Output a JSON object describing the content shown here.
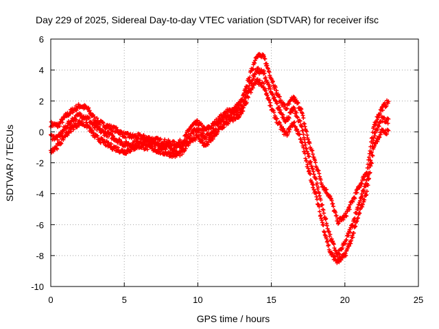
{
  "chart_data": {
    "type": "scatter",
    "title": "Day 229 of 2025, Sidereal Day-to-day VTEC variation (SDTVAR) for receiver ifsc",
    "xlabel": "GPS time / hours",
    "ylabel": "SDTVAR / TECUs",
    "xlim": [
      0,
      25
    ],
    "ylim": [
      -10,
      6
    ],
    "xticks": [
      "0",
      "5",
      "10",
      "15",
      "20",
      "25"
    ],
    "yticks": [
      "-10",
      "-8",
      "-6",
      "-4",
      "-2",
      "0",
      "2",
      "4",
      "6"
    ],
    "grid": true,
    "marker": "plus",
    "color": "#ff0000",
    "series": [
      {
        "x": [
          0.0,
          0.5,
          1.0,
          1.5,
          2.0,
          2.5,
          3.0,
          3.5,
          4.0,
          4.5,
          5.0,
          5.5,
          6.0,
          6.5,
          7.0,
          7.5,
          8.0,
          8.5,
          9.0,
          9.5,
          10.0,
          10.5,
          11.0,
          11.5,
          12.0,
          12.5,
          13.0,
          13.5,
          14.0,
          14.5,
          15.0,
          15.5,
          16.0,
          16.5,
          17.0,
          17.5,
          18.0,
          18.5,
          19.0,
          19.5,
          20.0,
          20.5,
          21.0,
          21.5,
          22.0,
          22.5,
          23.0
        ],
        "y": [
          0.5,
          0.4,
          1.0,
          1.4,
          1.7,
          1.5,
          0.8,
          0.5,
          0.3,
          0.1,
          -0.2,
          -0.3,
          -0.3,
          -0.4,
          -0.5,
          -0.6,
          -0.7,
          -0.8,
          -0.6,
          0.3,
          0.6,
          0.1,
          0.4,
          0.9,
          1.3,
          1.5,
          2.0,
          3.5,
          5.0,
          4.8,
          3.5,
          2.2,
          1.5,
          2.2,
          1.5,
          -0.5,
          -2.0,
          -3.5,
          -4.2,
          -5.8,
          -5.5,
          -4.5,
          -3.5,
          -2.5,
          0.5,
          1.5,
          2.0
        ]
      },
      {
        "x": [
          0.0,
          0.5,
          1.0,
          1.5,
          2.0,
          2.5,
          3.0,
          3.5,
          4.0,
          4.5,
          5.0,
          5.5,
          6.0,
          6.5,
          7.0,
          7.5,
          8.0,
          8.5,
          9.0,
          9.5,
          10.0,
          10.5,
          11.0,
          11.5,
          12.0,
          12.5,
          13.0,
          13.5,
          14.0,
          14.5,
          15.0,
          15.5,
          16.0,
          16.5,
          17.0,
          17.5,
          18.0,
          18.5,
          19.0,
          19.5,
          20.0,
          20.5,
          21.0,
          21.5,
          22.0,
          22.5,
          23.0
        ],
        "y": [
          -0.3,
          -0.4,
          0.3,
          0.8,
          1.1,
          0.9,
          0.3,
          0.0,
          -0.2,
          -0.5,
          -0.8,
          -0.8,
          -0.6,
          -0.7,
          -0.8,
          -0.9,
          -1.0,
          -1.1,
          -0.9,
          -0.1,
          0.2,
          -0.4,
          0.0,
          0.6,
          1.0,
          1.2,
          1.6,
          3.0,
          4.0,
          3.8,
          2.5,
          1.5,
          0.7,
          1.5,
          0.5,
          -1.5,
          -3.0,
          -5.0,
          -6.8,
          -8.0,
          -7.2,
          -6.0,
          -4.5,
          -3.2,
          -0.2,
          0.8,
          0.7
        ]
      },
      {
        "x": [
          0.0,
          0.5,
          1.0,
          1.5,
          2.0,
          2.5,
          3.0,
          3.5,
          4.0,
          4.5,
          5.0,
          5.5,
          6.0,
          6.5,
          7.0,
          7.5,
          8.0,
          8.5,
          9.0,
          9.5,
          10.0,
          10.5,
          11.0,
          11.5,
          12.0,
          12.5,
          13.0,
          13.5,
          14.0,
          14.5,
          15.0,
          15.5,
          16.0,
          16.5,
          17.0,
          17.5,
          18.0,
          18.5,
          19.0,
          19.5,
          20.0,
          20.5,
          21.0,
          21.5,
          22.0,
          22.5,
          23.0
        ],
        "y": [
          -1.2,
          -0.9,
          -0.2,
          0.3,
          0.6,
          0.4,
          -0.3,
          -0.6,
          -0.9,
          -1.1,
          -1.3,
          -1.1,
          -0.9,
          -1.0,
          -1.1,
          -1.3,
          -1.4,
          -1.5,
          -1.3,
          -0.5,
          -0.3,
          -0.9,
          -0.4,
          0.2,
          0.6,
          0.9,
          1.2,
          2.5,
          3.3,
          3.0,
          1.5,
          0.5,
          -0.2,
          0.6,
          -0.4,
          -2.4,
          -4.0,
          -6.0,
          -7.8,
          -8.4,
          -8.0,
          -6.8,
          -5.2,
          -3.8,
          -0.8,
          0.0,
          0.0
        ]
      }
    ]
  }
}
